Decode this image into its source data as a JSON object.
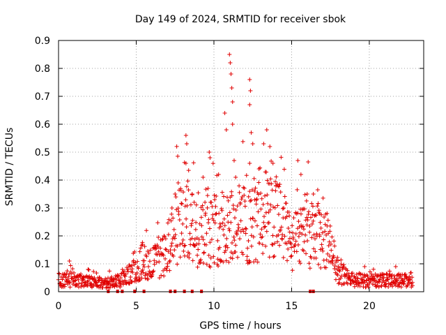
{
  "chart_data": {
    "type": "scatter",
    "title": "Day 149 of 2024, SRMTID for receiver sbok",
    "xlabel": "GPS time / hours",
    "ylabel": "SRMTID / TECUs",
    "xlim": [
      0,
      23.5
    ],
    "ylim": [
      0,
      0.9
    ],
    "xticks": [
      0,
      5,
      10,
      15,
      20
    ],
    "yticks": [
      0,
      0.1,
      0.2,
      0.3,
      0.4,
      0.5,
      0.6,
      0.7,
      0.8,
      0.9
    ],
    "xtick_labels": [
      "0",
      "5",
      "10",
      "15",
      "20"
    ],
    "ytick_labels": [
      "0",
      "0.1",
      "0.2",
      "0.3",
      "0.4",
      "0.5",
      "0.6",
      "0.7",
      "0.8",
      "0.9"
    ],
    "grid": true,
    "marker": "+",
    "color": "#e00000",
    "series": [
      {
        "name": "SRMTID",
        "envelope": {
          "x": [
            0,
            1,
            2,
            3,
            4,
            5,
            5.5,
            6,
            7,
            7.5,
            8,
            9,
            10,
            11,
            12,
            13,
            14,
            15,
            16,
            17,
            17.5,
            18,
            19,
            20,
            21,
            22,
            22.8
          ],
          "y": [
            0.04,
            0.04,
            0.035,
            0.03,
            0.04,
            0.08,
            0.12,
            0.1,
            0.13,
            0.22,
            0.25,
            0.2,
            0.22,
            0.25,
            0.24,
            0.25,
            0.27,
            0.17,
            0.2,
            0.2,
            0.16,
            0.07,
            0.04,
            0.04,
            0.04,
            0.04,
            0.04
          ]
        },
        "peaks": [
          {
            "x": 0.7,
            "y": 0.11
          },
          {
            "x": 1.9,
            "y": 0.08
          },
          {
            "x": 4.6,
            "y": 0.09
          },
          {
            "x": 5.4,
            "y": 0.17
          },
          {
            "x": 7.3,
            "y": 0.3
          },
          {
            "x": 7.7,
            "y": 0.39
          },
          {
            "x": 8.2,
            "y": 0.56
          },
          {
            "x": 8.25,
            "y": 0.53
          },
          {
            "x": 8.2,
            "y": 0.46
          },
          {
            "x": 8.6,
            "y": 0.35
          },
          {
            "x": 9.3,
            "y": 0.41
          },
          {
            "x": 9.7,
            "y": 0.5
          },
          {
            "x": 9.75,
            "y": 0.48
          },
          {
            "x": 10.3,
            "y": 0.42
          },
          {
            "x": 10.7,
            "y": 0.64
          },
          {
            "x": 10.8,
            "y": 0.58
          },
          {
            "x": 11.0,
            "y": 0.85
          },
          {
            "x": 11.05,
            "y": 0.82
          },
          {
            "x": 11.1,
            "y": 0.78
          },
          {
            "x": 11.15,
            "y": 0.73
          },
          {
            "x": 11.2,
            "y": 0.68
          },
          {
            "x": 11.2,
            "y": 0.6
          },
          {
            "x": 11.3,
            "y": 0.47
          },
          {
            "x": 11.4,
            "y": 0.41
          },
          {
            "x": 12.3,
            "y": 0.76
          },
          {
            "x": 12.35,
            "y": 0.72
          },
          {
            "x": 12.3,
            "y": 0.67
          },
          {
            "x": 12.4,
            "y": 0.57
          },
          {
            "x": 12.5,
            "y": 0.53
          },
          {
            "x": 12.3,
            "y": 0.46
          },
          {
            "x": 12.9,
            "y": 0.44
          },
          {
            "x": 13.2,
            "y": 0.53
          },
          {
            "x": 13.4,
            "y": 0.58
          },
          {
            "x": 13.6,
            "y": 0.52
          },
          {
            "x": 13.8,
            "y": 0.46
          },
          {
            "x": 14.0,
            "y": 0.38
          },
          {
            "x": 15.4,
            "y": 0.47
          },
          {
            "x": 15.6,
            "y": 0.42
          },
          {
            "x": 16.0,
            "y": 0.35
          },
          {
            "x": 16.4,
            "y": 0.35
          },
          {
            "x": 16.8,
            "y": 0.28
          },
          {
            "x": 18.0,
            "y": 0.09
          },
          {
            "x": 19.7,
            "y": 0.09
          },
          {
            "x": 21.7,
            "y": 0.09
          }
        ],
        "zero_values_x": [
          3.2,
          3.8,
          4.1,
          4.9,
          5.5,
          7.2,
          7.5,
          8.1,
          8.6,
          9.2,
          16.2,
          16.4
        ]
      }
    ]
  }
}
